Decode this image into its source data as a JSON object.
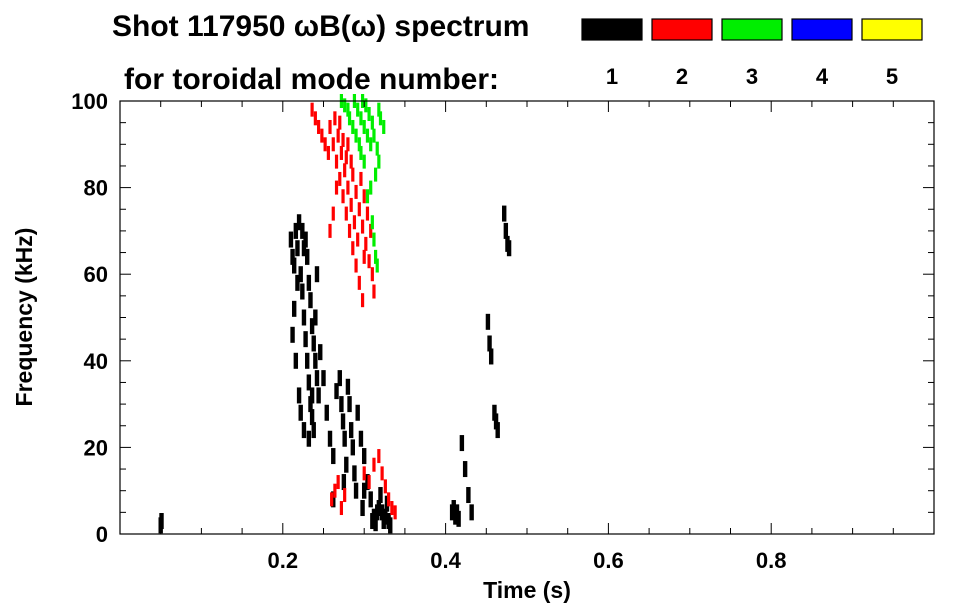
{
  "chart_data": {
    "type": "scatter",
    "title_line1": "Shot 117950 ωB(ω) spectrum",
    "title_line2": "for toroidal mode number:",
    "xlabel": "Time (s)",
    "ylabel": "Frequency (kHz)",
    "xlim": [
      0,
      1.0
    ],
    "ylim": [
      0,
      100
    ],
    "xticks": [
      {
        "value": 0.2,
        "label": "0.2"
      },
      {
        "value": 0.4,
        "label": "0.4"
      },
      {
        "value": 0.6,
        "label": "0.6"
      },
      {
        "value": 0.8,
        "label": "0.8"
      }
    ],
    "yticks": [
      {
        "value": 0,
        "label": "0"
      },
      {
        "value": 20,
        "label": "20"
      },
      {
        "value": 40,
        "label": "40"
      },
      {
        "value": 60,
        "label": "60"
      },
      {
        "value": 80,
        "label": "80"
      },
      {
        "value": 100,
        "label": "100"
      }
    ],
    "legend": [
      {
        "mode": "1",
        "color": "#000000"
      },
      {
        "mode": "2",
        "color": "#ff0000"
      },
      {
        "mode": "3",
        "color": "#00ee00"
      },
      {
        "mode": "4",
        "color": "#0000ff"
      },
      {
        "mode": "5",
        "color": "#ffff00"
      }
    ],
    "series": [
      {
        "mode": "1",
        "color": "#000000",
        "points": [
          [
            0.05,
            2.0
          ],
          [
            0.051,
            3.0
          ],
          [
            0.21,
            68
          ],
          [
            0.212,
            64
          ],
          [
            0.214,
            62
          ],
          [
            0.216,
            70
          ],
          [
            0.218,
            66
          ],
          [
            0.22,
            72
          ],
          [
            0.222,
            60
          ],
          [
            0.224,
            56
          ],
          [
            0.226,
            50
          ],
          [
            0.228,
            45
          ],
          [
            0.23,
            40
          ],
          [
            0.232,
            35
          ],
          [
            0.234,
            30
          ],
          [
            0.236,
            27
          ],
          [
            0.238,
            24
          ],
          [
            0.228,
            68
          ],
          [
            0.23,
            64
          ],
          [
            0.232,
            58
          ],
          [
            0.234,
            54
          ],
          [
            0.236,
            48
          ],
          [
            0.238,
            44
          ],
          [
            0.24,
            40
          ],
          [
            0.242,
            36
          ],
          [
            0.244,
            32
          ],
          [
            0.224,
            70
          ],
          [
            0.226,
            66
          ],
          [
            0.218,
            58
          ],
          [
            0.214,
            52
          ],
          [
            0.212,
            46
          ],
          [
            0.216,
            40
          ],
          [
            0.22,
            32
          ],
          [
            0.222,
            28
          ],
          [
            0.226,
            24
          ],
          [
            0.232,
            22
          ],
          [
            0.236,
            32
          ],
          [
            0.24,
            50
          ],
          [
            0.242,
            60
          ],
          [
            0.246,
            42
          ],
          [
            0.25,
            36
          ],
          [
            0.254,
            28
          ],
          [
            0.258,
            22
          ],
          [
            0.262,
            18
          ],
          [
            0.266,
            33
          ],
          [
            0.27,
            36
          ],
          [
            0.272,
            30
          ],
          [
            0.274,
            26
          ],
          [
            0.276,
            22
          ],
          [
            0.278,
            16
          ],
          [
            0.28,
            34
          ],
          [
            0.282,
            30
          ],
          [
            0.284,
            24
          ],
          [
            0.286,
            20
          ],
          [
            0.288,
            14
          ],
          [
            0.29,
            10
          ],
          [
            0.292,
            28
          ],
          [
            0.296,
            22
          ],
          [
            0.3,
            18
          ],
          [
            0.304,
            12
          ],
          [
            0.308,
            8
          ],
          [
            0.312,
            4
          ],
          [
            0.314,
            2.5
          ],
          [
            0.318,
            6
          ],
          [
            0.32,
            9
          ],
          [
            0.322,
            5
          ],
          [
            0.324,
            3
          ],
          [
            0.326,
            4
          ],
          [
            0.328,
            7
          ],
          [
            0.33,
            3
          ],
          [
            0.332,
            2
          ],
          [
            0.31,
            3
          ],
          [
            0.316,
            5
          ],
          [
            0.3,
            10
          ],
          [
            0.275,
            12
          ],
          [
            0.262,
            8
          ],
          [
            0.298,
            6
          ],
          [
            0.408,
            5
          ],
          [
            0.41,
            6
          ],
          [
            0.412,
            4
          ],
          [
            0.414,
            5
          ],
          [
            0.416,
            3.5
          ],
          [
            0.42,
            21
          ],
          [
            0.424,
            15
          ],
          [
            0.428,
            9
          ],
          [
            0.432,
            5
          ],
          [
            0.452,
            49
          ],
          [
            0.454,
            44
          ],
          [
            0.456,
            41
          ],
          [
            0.46,
            28
          ],
          [
            0.462,
            26
          ],
          [
            0.464,
            24
          ],
          [
            0.472,
            74
          ],
          [
            0.474,
            70
          ],
          [
            0.476,
            67
          ],
          [
            0.478,
            66
          ]
        ]
      },
      {
        "mode": "2",
        "color": "#ff0000",
        "points": [
          [
            0.236,
            98
          ],
          [
            0.24,
            96
          ],
          [
            0.244,
            94
          ],
          [
            0.248,
            92
          ],
          [
            0.252,
            90
          ],
          [
            0.256,
            88
          ],
          [
            0.258,
            94
          ],
          [
            0.262,
            90
          ],
          [
            0.266,
            86
          ],
          [
            0.27,
            82
          ],
          [
            0.274,
            78
          ],
          [
            0.278,
            74
          ],
          [
            0.282,
            70
          ],
          [
            0.286,
            66
          ],
          [
            0.29,
            62
          ],
          [
            0.294,
            58
          ],
          [
            0.298,
            54
          ],
          [
            0.264,
            96
          ],
          [
            0.268,
            92
          ],
          [
            0.272,
            88
          ],
          [
            0.276,
            84
          ],
          [
            0.28,
            80
          ],
          [
            0.284,
            76
          ],
          [
            0.288,
            72
          ],
          [
            0.27,
            95
          ],
          [
            0.274,
            91
          ],
          [
            0.278,
            87
          ],
          [
            0.286,
            83
          ],
          [
            0.29,
            79
          ],
          [
            0.294,
            75
          ],
          [
            0.298,
            71
          ],
          [
            0.302,
            67
          ],
          [
            0.306,
            63
          ],
          [
            0.28,
            90
          ],
          [
            0.284,
            86
          ],
          [
            0.296,
            82
          ],
          [
            0.3,
            78
          ],
          [
            0.304,
            74
          ],
          [
            0.308,
            70
          ],
          [
            0.31,
            60
          ],
          [
            0.312,
            56
          ],
          [
            0.3,
            64
          ],
          [
            0.292,
            68
          ],
          [
            0.266,
            80
          ],
          [
            0.262,
            74
          ],
          [
            0.258,
            70
          ],
          [
            0.26,
            8
          ],
          [
            0.264,
            10
          ],
          [
            0.268,
            12
          ],
          [
            0.272,
            6
          ],
          [
            0.276,
            9
          ],
          [
            0.3,
            14
          ],
          [
            0.306,
            12
          ],
          [
            0.312,
            16
          ],
          [
            0.318,
            18
          ],
          [
            0.322,
            14
          ],
          [
            0.326,
            11
          ],
          [
            0.33,
            8
          ],
          [
            0.334,
            6
          ],
          [
            0.338,
            5
          ]
        ]
      },
      {
        "mode": "3",
        "color": "#00ee00",
        "points": [
          [
            0.272,
            100
          ],
          [
            0.276,
            99
          ],
          [
            0.28,
            98
          ],
          [
            0.282,
            96
          ],
          [
            0.286,
            94
          ],
          [
            0.29,
            92
          ],
          [
            0.294,
            90
          ],
          [
            0.296,
            88
          ],
          [
            0.3,
            86
          ],
          [
            0.288,
            100
          ],
          [
            0.292,
            98
          ],
          [
            0.296,
            96
          ],
          [
            0.3,
            94
          ],
          [
            0.304,
            92
          ],
          [
            0.308,
            90
          ],
          [
            0.298,
            100
          ],
          [
            0.302,
            99
          ],
          [
            0.306,
            97
          ],
          [
            0.31,
            95
          ],
          [
            0.312,
            92
          ],
          [
            0.316,
            89
          ],
          [
            0.318,
            86
          ],
          [
            0.314,
            83
          ],
          [
            0.308,
            80
          ],
          [
            0.304,
            78
          ],
          [
            0.31,
            72
          ],
          [
            0.312,
            68
          ],
          [
            0.314,
            64
          ],
          [
            0.316,
            62
          ],
          [
            0.32,
            96
          ],
          [
            0.324,
            94
          ],
          [
            0.318,
            98
          ]
        ]
      },
      {
        "mode": "4",
        "color": "#0000ff",
        "points": []
      },
      {
        "mode": "5",
        "color": "#ffff00",
        "points": []
      }
    ]
  }
}
